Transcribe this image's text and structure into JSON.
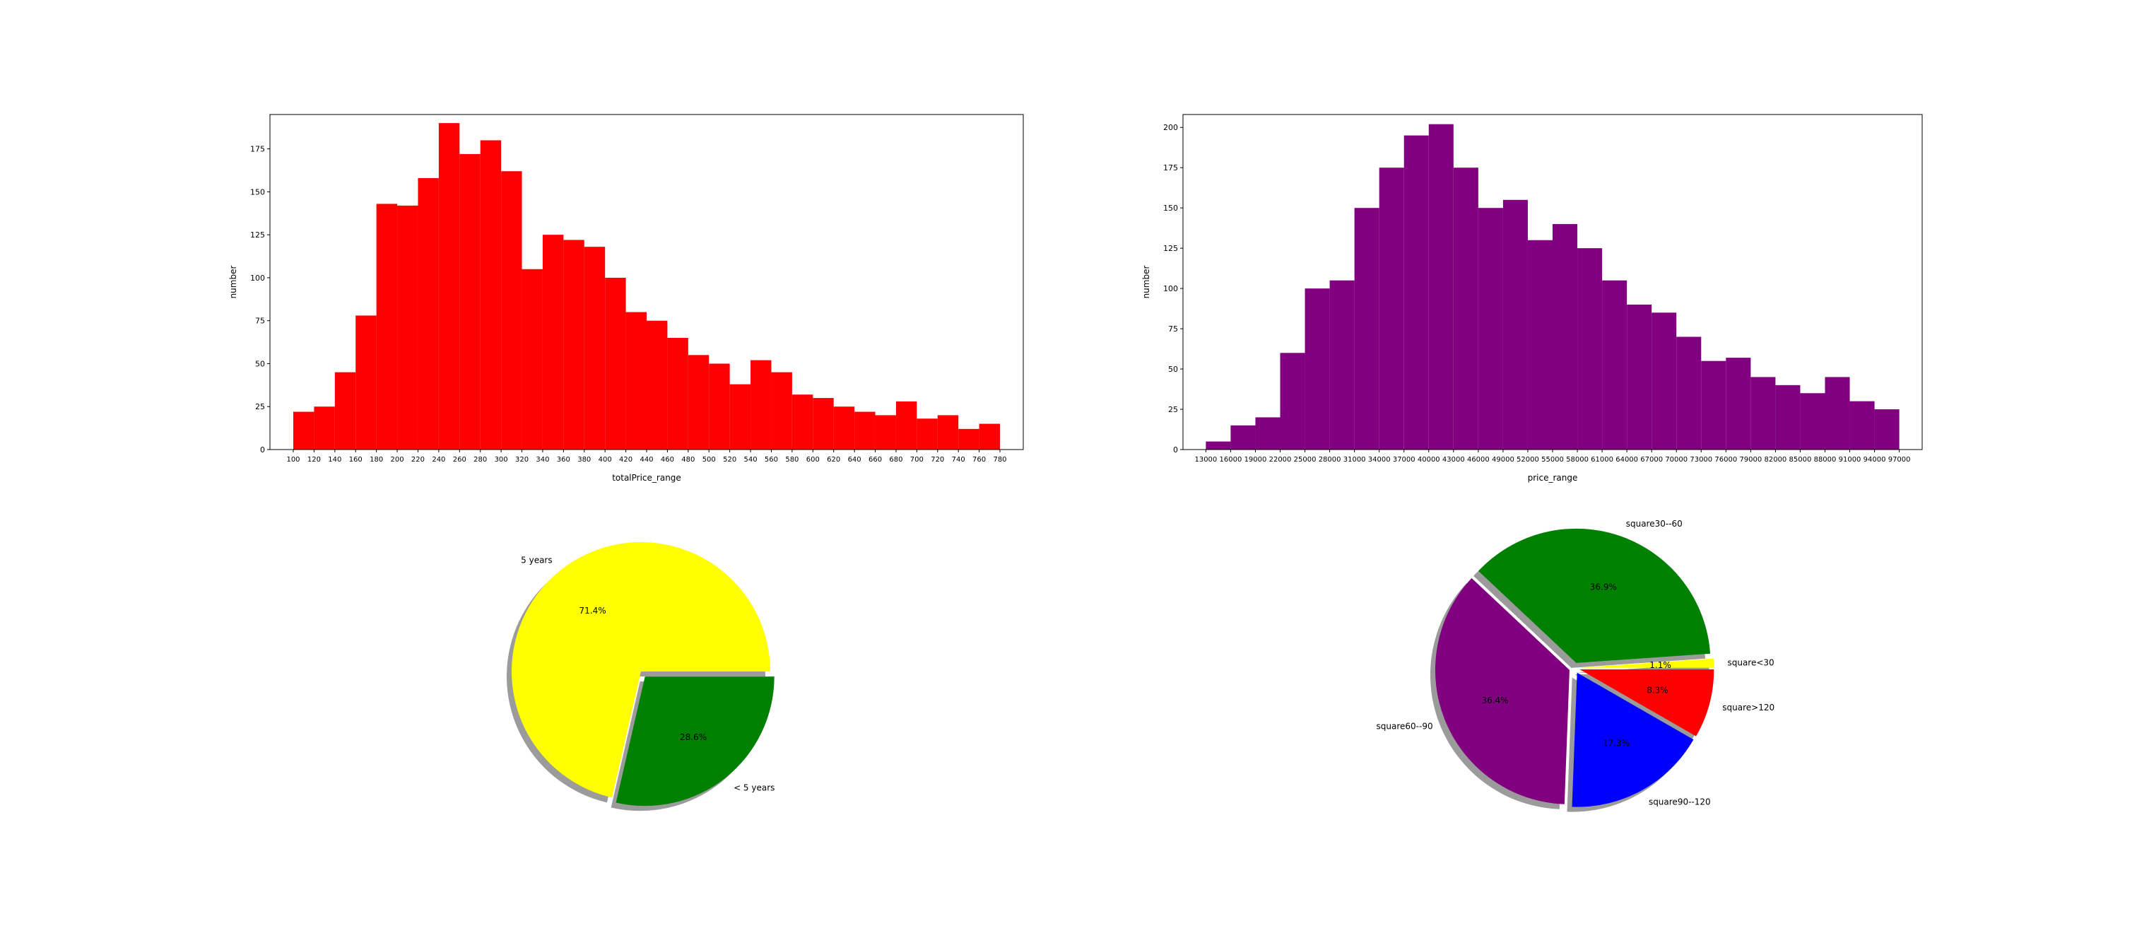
{
  "page": {
    "background": "#ffffff",
    "description": "Four matplotlib-style figures: two histograms (totalPrice_range, price_range) and two exploded pie charts with shadows"
  },
  "chart_data": [
    {
      "type": "bar",
      "name": "totalPrice-histogram",
      "xlabel": "totalPrice_range",
      "ylabel": "number",
      "bar_color": "#ff0000",
      "bin_edges": [
        100,
        120,
        140,
        160,
        180,
        200,
        220,
        240,
        260,
        280,
        300,
        320,
        340,
        360,
        380,
        400,
        420,
        440,
        460,
        480,
        500,
        520,
        540,
        560,
        580,
        600,
        620,
        640,
        660,
        680,
        700,
        720,
        740,
        760,
        780
      ],
      "values": [
        22,
        25,
        45,
        78,
        143,
        142,
        158,
        190,
        172,
        180,
        162,
        105,
        125,
        122,
        118,
        100,
        80,
        75,
        65,
        55,
        50,
        38,
        52,
        45,
        32,
        30,
        25,
        22,
        20,
        28,
        18,
        20,
        12,
        15
      ],
      "yticks": [
        0,
        25,
        50,
        75,
        100,
        125,
        150,
        175
      ],
      "ylim": [
        0,
        195
      ],
      "grid": false,
      "legend": "none"
    },
    {
      "type": "bar",
      "name": "price-histogram",
      "xlabel": "price_range",
      "ylabel": "number",
      "bar_color": "#800080",
      "bin_edges": [
        13000,
        16000,
        19000,
        22000,
        25000,
        28000,
        31000,
        34000,
        37000,
        40000,
        43000,
        46000,
        49000,
        52000,
        55000,
        58000,
        61000,
        64000,
        67000,
        70000,
        73000,
        76000,
        79000,
        82000,
        85000,
        88000,
        91000,
        94000,
        97000
      ],
      "values": [
        5,
        15,
        20,
        60,
        100,
        105,
        150,
        175,
        195,
        202,
        175,
        150,
        155,
        130,
        140,
        125,
        105,
        90,
        85,
        70,
        55,
        57,
        45,
        40,
        35,
        45,
        30,
        25
      ],
      "yticks": [
        0,
        25,
        50,
        75,
        100,
        125,
        150,
        175,
        200
      ],
      "ylim": [
        0,
        208
      ],
      "grid": false,
      "legend": "none"
    },
    {
      "type": "pie",
      "name": "age-pie",
      "start_angle": 0,
      "shadow": true,
      "slices": [
        {
          "label": "5 years",
          "pct": 71.4,
          "pct_label": "71.4%",
          "color": "#ffff00",
          "explode": 0.0
        },
        {
          "label": "< 5 years",
          "pct": 28.6,
          "pct_label": "28.6%",
          "color": "#008000",
          "explode": 0.05
        }
      ]
    },
    {
      "type": "pie",
      "name": "square-pie",
      "start_angle": 0,
      "shadow": true,
      "slices": [
        {
          "label": "square<30",
          "pct": 1.1,
          "pct_label": "1.1%",
          "color": "#ffff00",
          "explode": 0.04
        },
        {
          "label": "square30--60",
          "pct": 36.9,
          "pct_label": "36.9%",
          "color": "#008000",
          "explode": 0.04
        },
        {
          "label": "square60--90",
          "pct": 36.4,
          "pct_label": "36.4%",
          "color": "#800080",
          "explode": 0.04
        },
        {
          "label": "square90--120",
          "pct": 17.3,
          "pct_label": "17.3%",
          "color": "#0000ff",
          "explode": 0.04
        },
        {
          "label": "square>120",
          "pct": 8.3,
          "pct_label": "8.3%",
          "color": "#ff0000",
          "explode": 0.04
        }
      ]
    }
  ]
}
